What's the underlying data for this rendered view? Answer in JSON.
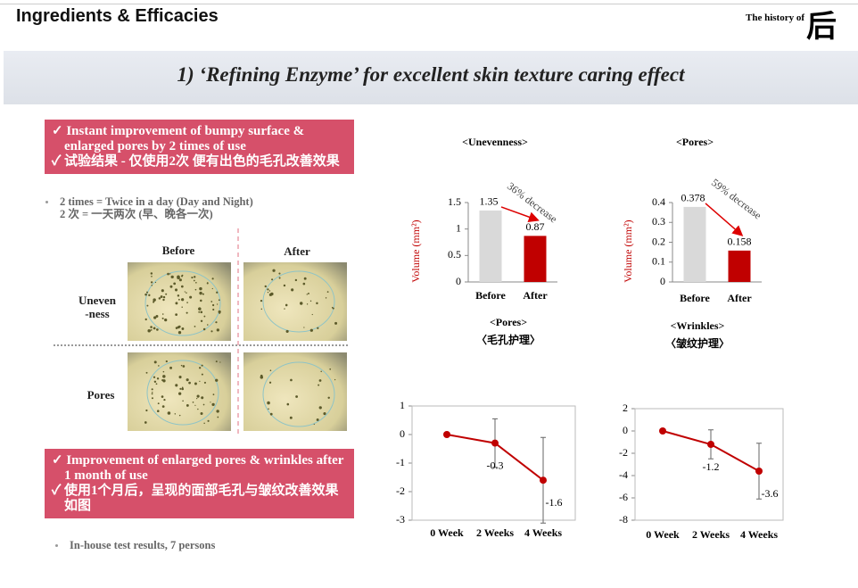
{
  "header": {
    "title": "Ingredients & Efficacies",
    "logo": "The history of",
    "logo_mark": "后"
  },
  "banner": "1) ‘Refining Enzyme’ for excellent skin texture caring effect",
  "panel": {
    "box1": [
      "✓ Instant improvement of bumpy surface & enlarged pores by 2 times of use",
      "✓ 试验结果 - 仅使用2次 便有出色的毛孔改善效果"
    ],
    "note1": [
      "2 times = Twice in a day (Day and Night)",
      "2 次 = 一天两次 (早、晚各一次)"
    ],
    "columns": [
      "Before",
      "After"
    ],
    "rows": [
      [
        "Uneven",
        "-ness"
      ],
      [
        "Pores"
      ]
    ],
    "box2": [
      "✓ Improvement of enlarged pores & wrinkles after 1 month of use",
      "✓ 使用1个月后，呈现的面部毛孔与皱纹改善效果如图"
    ],
    "note2": "In-house test results, 7 persons"
  },
  "chart_data": [
    {
      "type": "bar",
      "title": "<Unevenness>",
      "categories": [
        "Before",
        "After"
      ],
      "values": [
        1.35,
        0.87
      ],
      "colors": [
        "#d9d9d9",
        "#c00000"
      ],
      "ylabel": "Volume (mm²)",
      "ylim": [
        0,
        1.5
      ],
      "yticks": [
        0,
        0.5,
        1,
        1.5
      ],
      "annotation": "36% decrease"
    },
    {
      "type": "bar",
      "title": "<Pores>",
      "categories": [
        "Before",
        "After"
      ],
      "values": [
        0.378,
        0.158
      ],
      "colors": [
        "#d9d9d9",
        "#c00000"
      ],
      "ylabel": "Volume (mm²)",
      "ylim": [
        0,
        0.4
      ],
      "yticks": [
        0,
        0.1,
        0.2,
        0.3,
        0.4
      ],
      "annotation": "59% decrease"
    },
    {
      "type": "line",
      "title": "<Pores>",
      "subtitle": "〈毛孔护理〉",
      "categories": [
        "0 Week",
        "2 Weeks",
        "4 Weeks"
      ],
      "values": [
        0,
        -0.3,
        -1.6
      ],
      "errors": [
        null,
        0.85,
        1.5
      ],
      "color": "#c00000",
      "ylim": [
        -3,
        1
      ],
      "yticks": [
        -3,
        -2,
        -1,
        0,
        1
      ]
    },
    {
      "type": "line",
      "title": "<Wrinkles>",
      "subtitle": "〈皱纹护理〉",
      "categories": [
        "0 Week",
        "2 Weeks",
        "4 Weeks"
      ],
      "values": [
        0,
        -1.2,
        -3.6
      ],
      "errors": [
        null,
        1.3,
        2.5
      ],
      "color": "#c00000",
      "ylim": [
        -8,
        2
      ],
      "yticks": [
        -8,
        -6,
        -4,
        -2,
        0,
        2
      ]
    }
  ]
}
